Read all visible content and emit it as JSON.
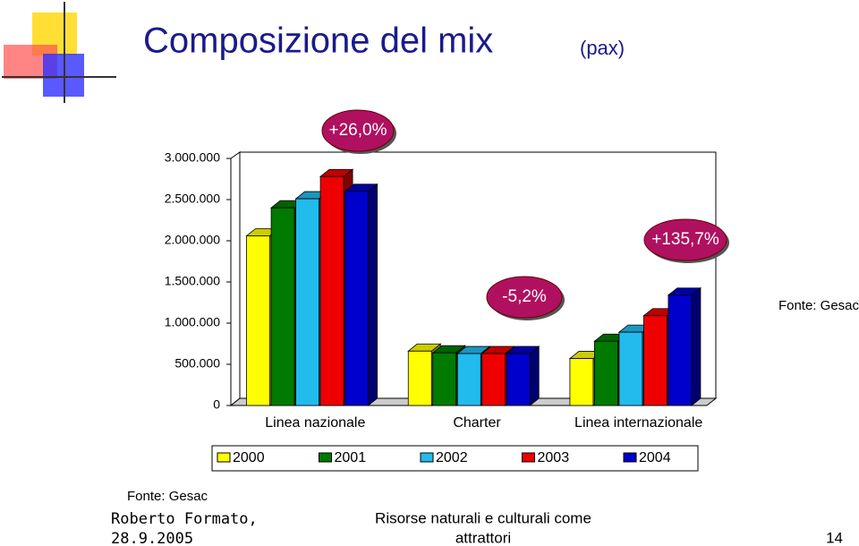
{
  "slide": {
    "title": "Composizione del mix",
    "title_unit": "(pax)",
    "source": "Fonte: Gesac",
    "footer_author": "Roberto Formato,",
    "footer_date": "28.9.2005",
    "footer_center": [
      "Risorse naturali e culturali come",
      "attrattori"
    ],
    "page": "14"
  },
  "chart_data": {
    "type": "bar3d",
    "categories": [
      "Linea nazionale",
      "Charter",
      "Linea internazionale"
    ],
    "series": [
      {
        "name": "2000",
        "color": "#ffff00",
        "values": [
          2060000,
          660000,
          570000
        ]
      },
      {
        "name": "2001",
        "color": "#007a00",
        "values": [
          2400000,
          640000,
          780000
        ]
      },
      {
        "name": "2002",
        "color": "#22bbee",
        "values": [
          2510000,
          630000,
          890000
        ]
      },
      {
        "name": "2003",
        "color": "#ee0000",
        "values": [
          2780000,
          630000,
          1090000
        ]
      },
      {
        "name": "2004",
        "color": "#0000cc",
        "values": [
          2600000,
          630000,
          1340000
        ]
      }
    ],
    "ylim": [
      0,
      3000000
    ],
    "yticks": [
      0,
      {
        "value": 500000,
        "label": "500.000"
      },
      {
        "value": 1000000,
        "label": "1.000.000"
      },
      {
        "value": 1500000,
        "label": "1.500.000"
      },
      {
        "value": 2000000,
        "label": "2.000.000"
      },
      {
        "value": 2500000,
        "label": "2.500.000"
      },
      {
        "value": 3000000,
        "label": "3.000.000"
      }
    ],
    "annotations": [
      "+26,0%",
      "-5,2%",
      "+135,7%"
    ],
    "source": "Fonte: Gesac"
  }
}
